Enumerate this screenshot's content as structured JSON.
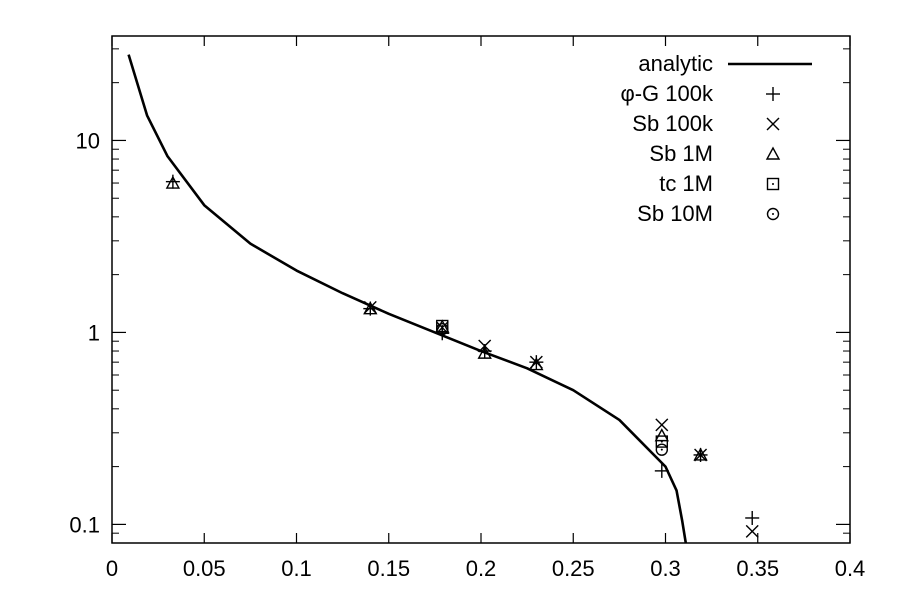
{
  "chart_data": {
    "type": "scatter",
    "title": "",
    "xlabel": "",
    "ylabel": "",
    "xlim": [
      0,
      0.4
    ],
    "ylim": [
      0.08,
      35
    ],
    "yscale": "log",
    "grid": false,
    "legend_position": "top-right",
    "x_ticks": [
      "0",
      "0.05",
      "0.1",
      "0.15",
      "0.2",
      "0.25",
      "0.3",
      "0.35",
      "0.4"
    ],
    "y_ticks": [
      "0.1",
      "1",
      "10"
    ],
    "series": [
      {
        "name": "analytic",
        "marker": "line",
        "color": "#000000",
        "x": [
          0.009,
          0.019,
          0.03,
          0.05,
          0.075,
          0.1,
          0.125,
          0.15,
          0.175,
          0.2,
          0.225,
          0.25,
          0.275,
          0.3,
          0.306,
          0.309,
          0.311
        ],
        "y": [
          28,
          13.5,
          8.3,
          4.6,
          2.9,
          2.1,
          1.6,
          1.25,
          1.0,
          0.8,
          0.65,
          0.5,
          0.35,
          0.2,
          0.15,
          0.105,
          0.08
        ]
      },
      {
        "name": "φ-G 100k",
        "marker": "plus",
        "x": [
          0.033,
          0.14,
          0.179,
          0.202,
          0.23,
          0.298,
          0.319,
          0.347
        ],
        "y": [
          6.1,
          1.33,
          0.99,
          0.8,
          0.7,
          0.19,
          0.23,
          0.108
        ]
      },
      {
        "name": "Sb 100k",
        "marker": "cross",
        "x": [
          0.14,
          0.179,
          0.202,
          0.23,
          0.298,
          0.319,
          0.347
        ],
        "y": [
          1.35,
          1.06,
          0.85,
          0.7,
          0.33,
          0.23,
          0.092
        ]
      },
      {
        "name": "Sb 1M",
        "marker": "triangle",
        "x": [
          0.033,
          0.14,
          0.179,
          0.202,
          0.23,
          0.298,
          0.319
        ],
        "y": [
          6.0,
          1.33,
          1.07,
          0.78,
          0.68,
          0.29,
          0.23
        ]
      },
      {
        "name": "tc 1M",
        "marker": "square",
        "x": [
          0.179,
          0.298
        ],
        "y": [
          1.08,
          0.27
        ]
      },
      {
        "name": "Sb 10M",
        "marker": "circle",
        "x": [
          0.179,
          0.298
        ],
        "y": [
          1.04,
          0.245
        ]
      }
    ]
  }
}
